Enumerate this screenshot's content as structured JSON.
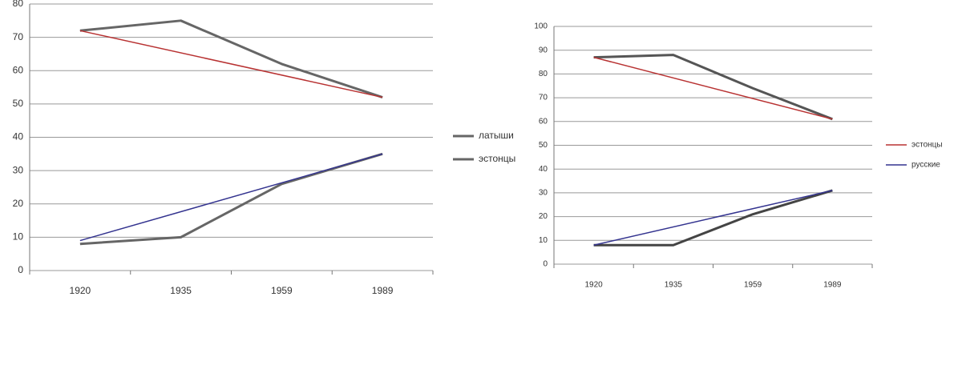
{
  "chart_data": [
    {
      "type": "line",
      "categories": [
        "1920",
        "1935",
        "1959",
        "1989"
      ],
      "ylim": [
        0,
        80
      ],
      "yticks": [
        0,
        10,
        20,
        30,
        40,
        50,
        60,
        70,
        80
      ],
      "grid": true,
      "legend": "right",
      "series": [
        {
          "name": "латыши",
          "color": "#666666",
          "values": [
            72,
            75,
            62,
            52
          ]
        },
        {
          "name": "эстонцы",
          "color": "#666666",
          "values": [
            8,
            10,
            26,
            35
          ]
        }
      ],
      "trend_lines": [
        {
          "color": "#b83232",
          "values": [
            72,
            52
          ]
        },
        {
          "color": "#33338f",
          "values": [
            9,
            35
          ]
        }
      ]
    },
    {
      "type": "line",
      "categories": [
        "1920",
        "1935",
        "1959",
        "1989"
      ],
      "ylim": [
        0,
        100
      ],
      "yticks": [
        0,
        10,
        20,
        30,
        40,
        50,
        60,
        70,
        80,
        90,
        100
      ],
      "grid": true,
      "legend": "right",
      "series": [
        {
          "color": "#555555",
          "values": [
            87,
            88,
            74,
            61
          ]
        },
        {
          "color": "#444444",
          "values": [
            8,
            8,
            21,
            31
          ]
        }
      ],
      "trend_lines": [
        {
          "name": "эстонцы",
          "color": "#b83232",
          "values": [
            87,
            61
          ]
        },
        {
          "name": "русские",
          "color": "#33338f",
          "values": [
            8,
            31
          ]
        }
      ]
    }
  ]
}
